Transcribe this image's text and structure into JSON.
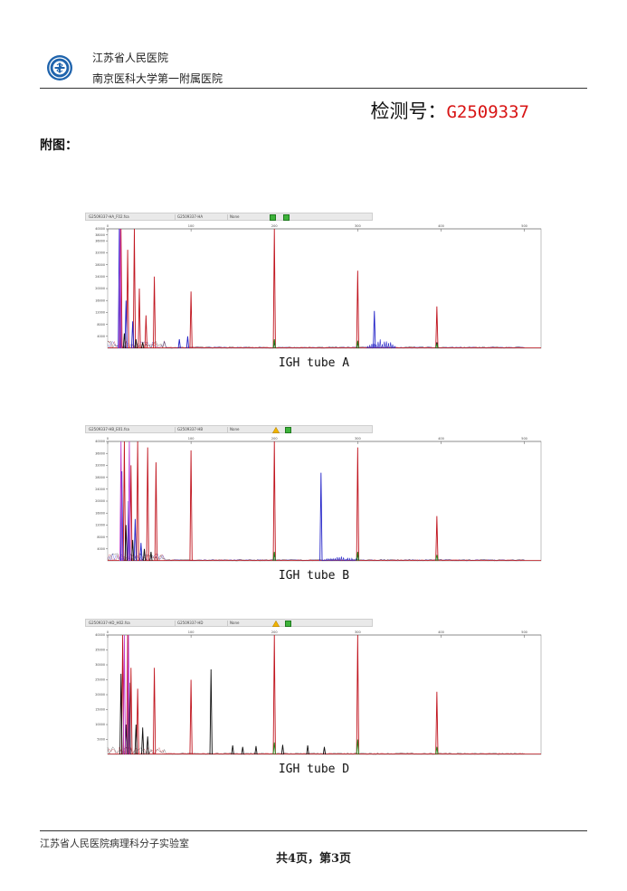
{
  "header": {
    "hospital_name_1": "江苏省人民医院",
    "hospital_name_2": "南京医科大学第一附属医院",
    "test_no_label": "检测号：",
    "test_no_value": "G2509337",
    "logo_icon": "hospital-emblem-icon"
  },
  "appendix_label": "附图：",
  "colors": {
    "red": "#c0141e",
    "blue": "#2424c8",
    "green": "#1f8f1f",
    "black": "#111111",
    "magenta": "#c23fd0",
    "accent_text": "#d81414"
  },
  "panels": [
    {
      "caption": "IGH tube A",
      "toolbar": {
        "file": "G2509337-HA_F02.fsa",
        "id": "G2509337-HA",
        "mode": "None",
        "status_icons": [
          "green-status-icon",
          "green-status-icon"
        ]
      },
      "chart_data": {
        "type": "line",
        "x_ticks": [
          "0",
          "100",
          "200",
          "300",
          "400",
          "500"
        ],
        "y_ticks": [
          "40000",
          "38000",
          "36000",
          "32000",
          "28000",
          "24000",
          "20000",
          "16000",
          "12000",
          "8000",
          "4000"
        ],
        "xlim": [
          0,
          520
        ],
        "ylim": [
          0,
          40000
        ],
        "series": [
          {
            "color": "red",
            "peaks": [
              [
                16,
                40000
              ],
              [
                24,
                33000
              ],
              [
                32,
                40000
              ],
              [
                38,
                20000
              ],
              [
                46,
                11000
              ],
              [
                56,
                24000
              ],
              [
                100,
                19000
              ],
              [
                200,
                40000
              ],
              [
                300,
                26000
              ],
              [
                395,
                14000
              ]
            ]
          },
          {
            "color": "blue",
            "peaks": [
              [
                14,
                40000
              ],
              [
                22,
                16000
              ],
              [
                30,
                9000
              ],
              [
                86,
                3000
              ],
              [
                96,
                4000
              ],
              [
                320,
                12500
              ]
            ],
            "clusters": [
              [
                312,
                345,
                3400
              ]
            ]
          },
          {
            "color": "black",
            "peaks": [
              [
                20,
                5000
              ],
              [
                34,
                3000
              ],
              [
                42,
                2000
              ],
              [
                200,
                2000
              ],
              [
                300,
                2000
              ],
              [
                395,
                2000
              ]
            ]
          },
          {
            "color": "green",
            "peaks": [
              [
                200,
                3000
              ],
              [
                300,
                2500
              ],
              [
                395,
                1500
              ]
            ]
          },
          {
            "color": "magenta",
            "peaks": [
              [
                15,
                40000
              ]
            ]
          }
        ]
      }
    },
    {
      "caption": "IGH tube B",
      "toolbar": {
        "file": "G2509337-HB_E01.fsa",
        "id": "G2509337-HB",
        "mode": "None",
        "status_icons": [
          "warning-status-icon",
          "green-status-icon"
        ]
      },
      "chart_data": {
        "type": "line",
        "x_ticks": [
          "0",
          "100",
          "200",
          "300",
          "400",
          "500"
        ],
        "y_ticks": [
          "40000",
          "36000",
          "32000",
          "28000",
          "24000",
          "20000",
          "16000",
          "12000",
          "8000",
          "4000"
        ],
        "xlim": [
          0,
          520
        ],
        "ylim": [
          0,
          40000
        ],
        "series": [
          {
            "color": "red",
            "peaks": [
              [
                20,
                40000
              ],
              [
                28,
                32000
              ],
              [
                36,
                40000
              ],
              [
                48,
                38000
              ],
              [
                58,
                33000
              ],
              [
                100,
                37000
              ],
              [
                200,
                40000
              ],
              [
                300,
                38000
              ],
              [
                395,
                15000
              ]
            ]
          },
          {
            "color": "blue",
            "peaks": [
              [
                17,
                30000
              ],
              [
                25,
                20000
              ],
              [
                33,
                14000
              ],
              [
                40,
                6000
              ],
              [
                256,
                29500
              ]
            ],
            "clusters": [
              [
                258,
                300,
                1500
              ]
            ]
          },
          {
            "color": "black",
            "peaks": [
              [
                22,
                12000
              ],
              [
                30,
                7000
              ],
              [
                44,
                4000
              ],
              [
                52,
                3000
              ],
              [
                200,
                2500
              ],
              [
                300,
                2500
              ]
            ]
          },
          {
            "color": "green",
            "peaks": [
              [
                200,
                3000
              ],
              [
                300,
                3000
              ],
              [
                395,
                2000
              ]
            ]
          },
          {
            "color": "magenta",
            "peaks": [
              [
                16,
                40000
              ],
              [
                26,
                40000
              ]
            ]
          }
        ]
      }
    },
    {
      "caption": "IGH tube D",
      "toolbar": {
        "file": "G2509337-HD_H02.fsa",
        "id": "G2509337-HD",
        "mode": "None",
        "status_icons": [
          "warning-status-icon",
          "green-status-icon"
        ]
      },
      "chart_data": {
        "type": "line",
        "x_ticks": [
          "0",
          "100",
          "200",
          "300",
          "400",
          "500"
        ],
        "y_ticks": [
          "40000",
          "35000",
          "30000",
          "25000",
          "20000",
          "15000",
          "10000",
          "5000"
        ],
        "xlim": [
          0,
          520
        ],
        "ylim": [
          0,
          40000
        ],
        "series": [
          {
            "color": "red",
            "peaks": [
              [
                18,
                40000
              ],
              [
                24,
                40000
              ],
              [
                28,
                29000
              ],
              [
                36,
                22000
              ],
              [
                56,
                29000
              ],
              [
                100,
                25000
              ],
              [
                200,
                40000
              ],
              [
                300,
                40000
              ],
              [
                395,
                21000
              ]
            ]
          },
          {
            "color": "black",
            "peaks": [
              [
                16,
                27000
              ],
              [
                22,
                10000
              ],
              [
                26,
                24000
              ],
              [
                34,
                10000
              ],
              [
                42,
                9000
              ],
              [
                48,
                6000
              ],
              [
                124,
                28500
              ],
              [
                150,
                3000
              ],
              [
                162,
                2500
              ],
              [
                178,
                2800
              ],
              [
                210,
                3200
              ],
              [
                240,
                3000
              ],
              [
                260,
                2500
              ]
            ]
          },
          {
            "color": "green",
            "peaks": [
              [
                200,
                4000
              ],
              [
                300,
                5000
              ],
              [
                395,
                2500
              ]
            ]
          },
          {
            "color": "magenta",
            "peaks": [
              [
                20,
                40000
              ],
              [
                25,
                40000
              ]
            ]
          }
        ]
      }
    }
  ],
  "footer": {
    "lab_name": "江苏省人民医院病理科分子实验室",
    "page_label": "共4页，第3页"
  }
}
